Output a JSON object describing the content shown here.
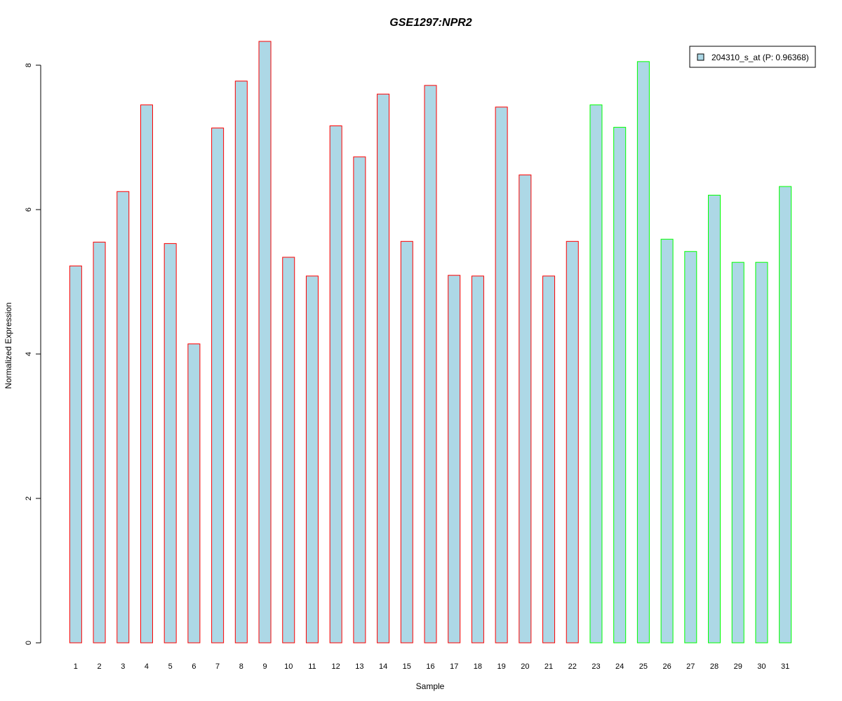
{
  "chart_data": {
    "type": "bar",
    "title": "GSE1297:NPR2",
    "xlabel": "Sample",
    "ylabel": "Normalized Expression",
    "ylim": [
      0,
      8
    ],
    "yticks": [
      0,
      2,
      4,
      6,
      8
    ],
    "grid": false,
    "legend": {
      "position": "top-right",
      "label": "204310_s_at (P: 0.96368)",
      "color": "#add8e6"
    },
    "categories": [
      "1",
      "2",
      "3",
      "4",
      "5",
      "6",
      "7",
      "8",
      "9",
      "10",
      "11",
      "12",
      "13",
      "14",
      "15",
      "16",
      "17",
      "18",
      "19",
      "20",
      "21",
      "22",
      "23",
      "24",
      "25",
      "26",
      "27",
      "28",
      "29",
      "30",
      "31"
    ],
    "values": [
      5.22,
      5.55,
      6.25,
      7.45,
      5.53,
      4.14,
      7.13,
      7.78,
      8.33,
      5.34,
      5.08,
      7.16,
      6.73,
      7.6,
      5.56,
      7.72,
      5.09,
      5.08,
      7.42,
      6.48,
      5.08,
      5.56,
      7.45,
      7.14,
      8.05,
      5.59,
      5.42,
      6.2,
      5.27,
      5.27,
      6.32
    ],
    "groups": [
      {
        "samples": [
          1,
          22
        ],
        "border_color": "#ff0000"
      },
      {
        "samples": [
          23,
          31
        ],
        "border_color": "#00ff00"
      }
    ],
    "bar_fill": "#add8e6",
    "title_color": "#0000cd"
  }
}
